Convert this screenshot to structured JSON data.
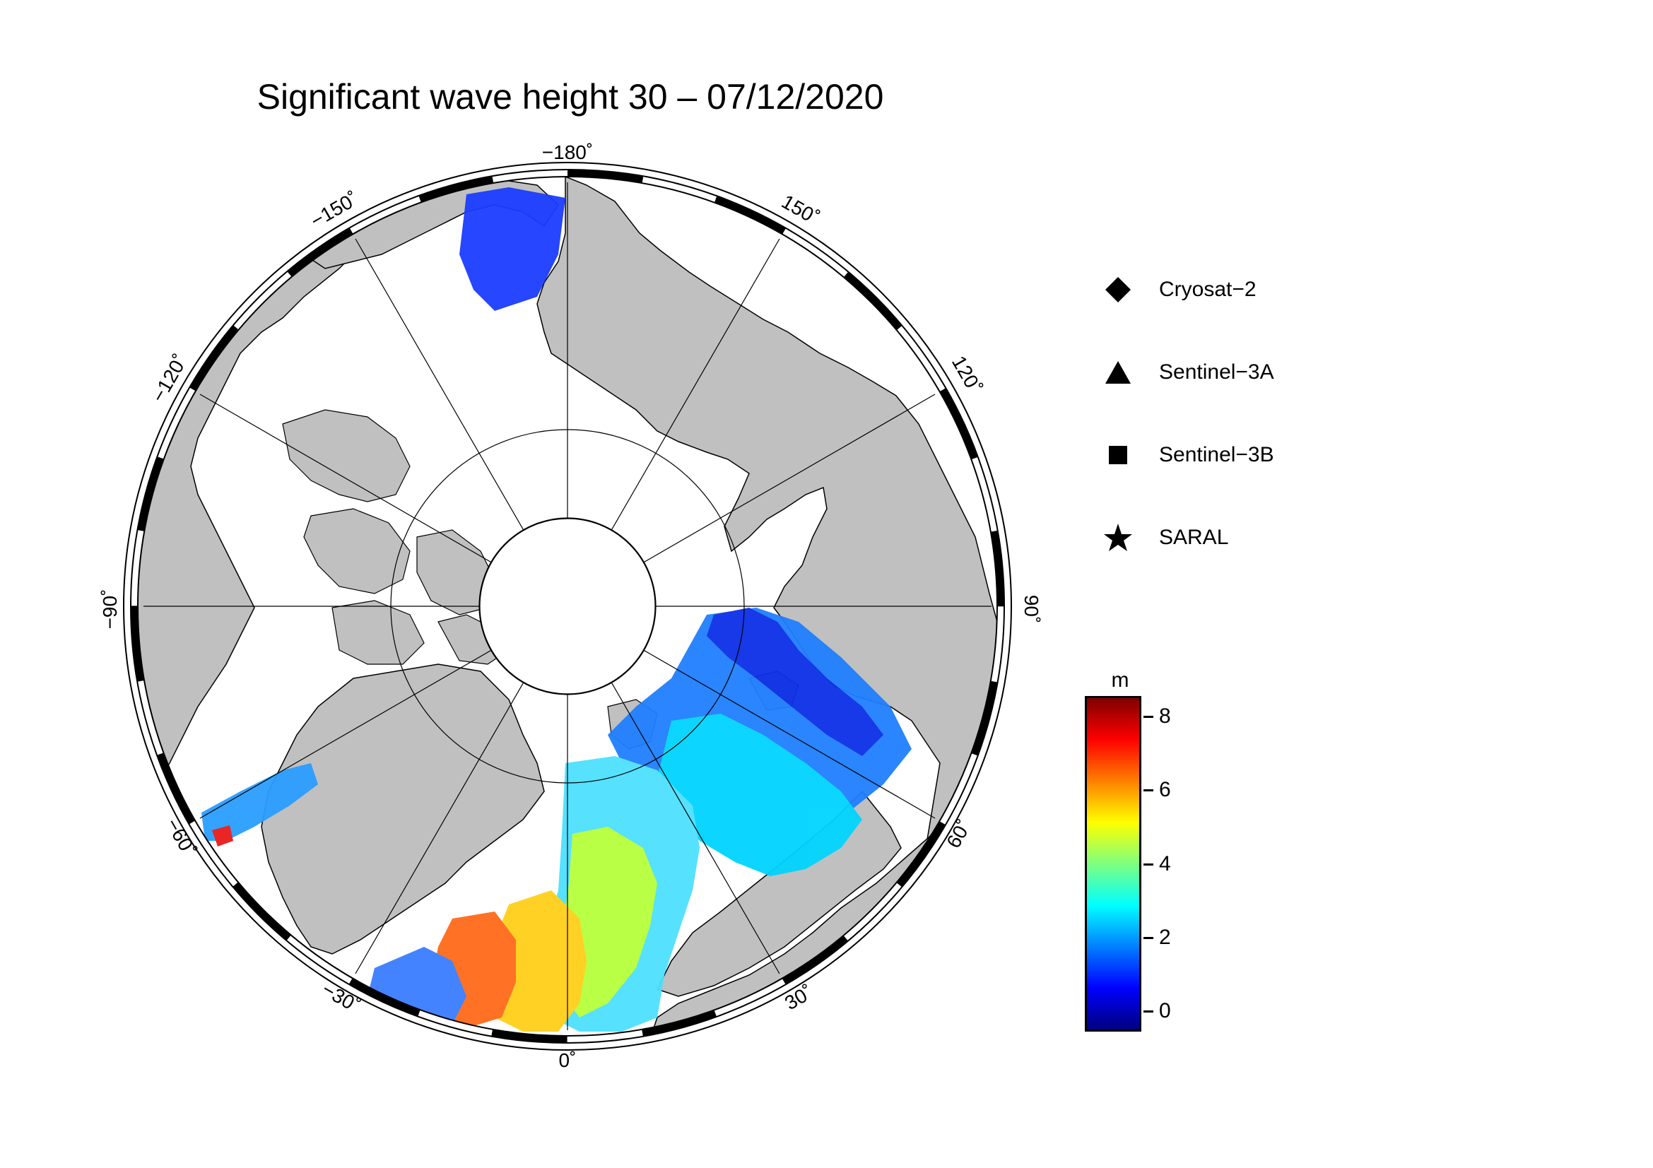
{
  "title": "Significant wave height 30 – 07/12/2020",
  "map": {
    "projection": "north polar stereographic",
    "land_color": "#c0c0c0",
    "ocean_color": "#ffffff",
    "longitude_labels": {
      "lon_0": "0˚",
      "lon_30": "30˚",
      "lon_60": "60˚",
      "lon_90": "90˚",
      "lon_120": "120˚",
      "lon_150": "150˚",
      "lon_m180": "−180˚",
      "lon_m150": "−150˚",
      "lon_m120": "−120˚",
      "lon_m90": "−90˚",
      "lon_m60": "−60˚",
      "lon_m30": "−30˚"
    }
  },
  "legend": [
    {
      "label": "Cryosat−2",
      "symbol": "diamond-icon"
    },
    {
      "label": "Sentinel−3A",
      "symbol": "triangle-icon"
    },
    {
      "label": "Sentinel−3B",
      "symbol": "square-icon"
    },
    {
      "label": "SARAL",
      "symbol": "star-icon"
    }
  ],
  "colorbar": {
    "unit": "m",
    "ticks": [
      "0",
      "2",
      "4",
      "6",
      "8"
    ],
    "range": [
      -0.5,
      8.5
    ],
    "colors": [
      "#00007f",
      "#0000ff",
      "#007fff",
      "#00ffff",
      "#7fff7f",
      "#ffff00",
      "#ff7f00",
      "#ff0000",
      "#7f0000"
    ]
  }
}
